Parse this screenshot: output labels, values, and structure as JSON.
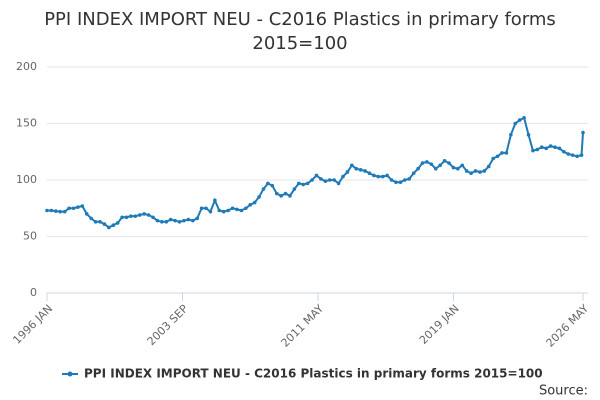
{
  "chart_data": {
    "type": "line",
    "title": "PPI INDEX IMPORT NEU - C2016 Plastics in primary forms 2015=100",
    "source": "Source:",
    "x": [
      "1996 JAN",
      "1996 APR",
      "1996 JUL",
      "1996 OCT",
      "1997 JAN",
      "1997 APR",
      "1997 JUL",
      "1997 OCT",
      "1998 JAN",
      "1998 APR",
      "1998 JUL",
      "1998 OCT",
      "1999 JAN",
      "1999 APR",
      "1999 JUL",
      "1999 OCT",
      "2000 JAN",
      "2000 APR",
      "2000 JUL",
      "2000 OCT",
      "2001 JAN",
      "2001 APR",
      "2001 JUL",
      "2001 OCT",
      "2002 JAN",
      "2002 APR",
      "2002 JUL",
      "2002 OCT",
      "2003 JAN",
      "2003 APR",
      "2003 JUL",
      "2003 OCT",
      "2004 JAN",
      "2004 APR",
      "2004 JUL",
      "2004 OCT",
      "2005 JAN",
      "2005 APR",
      "2005 JUL",
      "2005 OCT",
      "2006 JAN",
      "2006 APR",
      "2006 JUL",
      "2006 OCT",
      "2007 JAN",
      "2007 APR",
      "2007 JUL",
      "2007 OCT",
      "2008 JAN",
      "2008 APR",
      "2008 JUL",
      "2008 OCT",
      "2009 JAN",
      "2009 APR",
      "2009 JUL",
      "2009 OCT",
      "2010 JAN",
      "2010 APR",
      "2010 JUL",
      "2010 OCT",
      "2011 JAN",
      "2011 APR",
      "2011 JUL",
      "2011 OCT",
      "2012 JAN",
      "2012 APR",
      "2012 JUL",
      "2012 OCT",
      "2013 JAN",
      "2013 APR",
      "2013 JUL",
      "2013 OCT",
      "2014 JAN",
      "2014 APR",
      "2014 JUL",
      "2014 OCT",
      "2015 JAN",
      "2015 APR",
      "2015 JUL",
      "2015 OCT",
      "2016 JAN",
      "2016 APR",
      "2016 JUL",
      "2016 OCT",
      "2017 JAN",
      "2017 APR",
      "2017 JUL",
      "2017 OCT",
      "2018 JAN",
      "2018 APR",
      "2018 JUL",
      "2018 OCT",
      "2019 JAN",
      "2019 APR",
      "2019 JUL",
      "2019 OCT",
      "2020 JAN",
      "2020 APR",
      "2020 JUL",
      "2020 OCT",
      "2021 JAN",
      "2021 APR",
      "2021 JUL",
      "2021 OCT",
      "2022 JAN",
      "2022 APR",
      "2022 JUL",
      "2022 OCT",
      "2023 JAN",
      "2023 APR",
      "2023 JUL",
      "2023 OCT",
      "2024 JAN",
      "2024 APR",
      "2024 JUL",
      "2024 OCT",
      "2025 JAN",
      "2025 APR",
      "2025 JUL",
      "2025 OCT",
      "2026 JAN",
      "2026 APR",
      "2026 MAY"
    ],
    "series": [
      {
        "name": "PPI INDEX IMPORT NEU - C2016 Plastics in primary forms 2015=100",
        "color": "#1f7ab8",
        "values": [
          73,
          73,
          72.5,
          72,
          72,
          75,
          75,
          76,
          77,
          70,
          66,
          63,
          63,
          61,
          58,
          60,
          62,
          67,
          67,
          68,
          68,
          69,
          70,
          69,
          67,
          64,
          63,
          63,
          65,
          64,
          63,
          64,
          65,
          64,
          66,
          75,
          75,
          72,
          82,
          73,
          72,
          73,
          75,
          74,
          73,
          75,
          78,
          80,
          85,
          92,
          97,
          95,
          88,
          86,
          88,
          86,
          92,
          97,
          96,
          97,
          100,
          104,
          101,
          99,
          100,
          100,
          97,
          103,
          107,
          113,
          110,
          109,
          108,
          106,
          104,
          103,
          103,
          104,
          100,
          98,
          98,
          100,
          101,
          106,
          110,
          115,
          116,
          114,
          110,
          113,
          117,
          115,
          111,
          110,
          113,
          108,
          106,
          108,
          107,
          108,
          112,
          119,
          121,
          124,
          124,
          140,
          150,
          153,
          155,
          140,
          126,
          127,
          129,
          128,
          130,
          129,
          128,
          125,
          123,
          122,
          121,
          122,
          142
        ]
      }
    ],
    "xticks": [
      "1996 JAN",
      "2003 SEP",
      "2011 MAY",
      "2019 JAN",
      "2026 MAY"
    ],
    "ylim": [
      0,
      200
    ],
    "yticks": [
      0,
      50,
      100,
      150,
      200
    ],
    "grid": true,
    "legend": "bottom"
  }
}
